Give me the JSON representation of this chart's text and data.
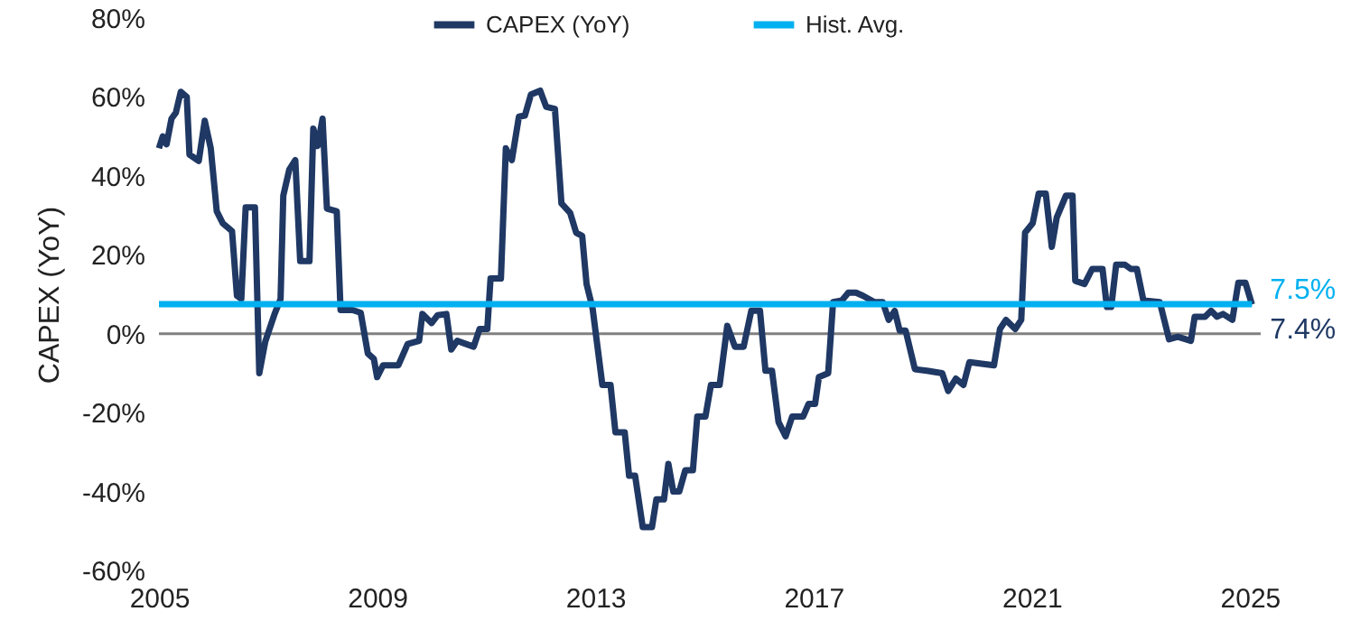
{
  "chart_data": {
    "type": "line",
    "ylabel": "CAPEX (YoY)",
    "legend": "top",
    "xlim": [
      2005,
      2025.2
    ],
    "xticks": [
      2005,
      2009,
      2013,
      2017,
      2021,
      2025
    ],
    "ylim": [
      -60,
      80
    ],
    "yticks": [
      {
        "value": -60,
        "label": "-60%"
      },
      {
        "value": -40,
        "label": "-40%"
      },
      {
        "value": -20,
        "label": "-20%"
      },
      {
        "value": 0,
        "label": "0%"
      },
      {
        "value": 20,
        "label": "20%"
      },
      {
        "value": 40,
        "label": "40%"
      },
      {
        "value": 60,
        "label": "60%"
      },
      {
        "value": 80,
        "label": "80%"
      }
    ],
    "grid": false,
    "ref_lines": [
      {
        "axis": "y",
        "value": 0,
        "color": "#808080"
      }
    ],
    "annotations": [
      {
        "text": "7.4%",
        "x": 2025.04,
        "y": 7.4
      }
    ],
    "series": [
      {
        "name": "CAPEX (YoY)",
        "color": "#1f3864",
        "x": [
          2005.0,
          2005.07,
          2005.14,
          2005.23,
          2005.31,
          2005.4,
          2005.51,
          2005.56,
          2005.73,
          2005.84,
          2005.95,
          2006.06,
          2006.17,
          2006.34,
          2006.43,
          2006.51,
          2006.59,
          2006.76,
          2006.84,
          2006.95,
          2007.12,
          2007.23,
          2007.28,
          2007.39,
          2007.5,
          2007.59,
          2007.76,
          2007.83,
          2007.91,
          2008.0,
          2008.08,
          2008.26,
          2008.33,
          2008.55,
          2008.7,
          2008.83,
          2008.94,
          2009.0,
          2009.11,
          2009.39,
          2009.56,
          2009.77,
          2009.83,
          2010.0,
          2010.11,
          2010.27,
          2010.36,
          2010.47,
          2010.77,
          2010.88,
          2011.02,
          2011.08,
          2011.27,
          2011.36,
          2011.47,
          2011.6,
          2011.71,
          2011.82,
          2011.99,
          2012.1,
          2012.26,
          2012.38,
          2012.54,
          2012.65,
          2012.76,
          2012.84,
          2012.95,
          2013.13,
          2013.28,
          2013.37,
          2013.54,
          2013.62,
          2013.73,
          2013.87,
          2014.04,
          2014.12,
          2014.26,
          2014.34,
          2014.43,
          2014.54,
          2014.65,
          2014.79,
          2014.87,
          2015.02,
          2015.12,
          2015.28,
          2015.42,
          2015.56,
          2015.72,
          2015.86,
          2016.02,
          2016.12,
          2016.24,
          2016.36,
          2016.49,
          2016.61,
          2016.81,
          2016.91,
          2017.03,
          2017.1,
          2017.27,
          2017.36,
          2017.52,
          2017.64,
          2017.78,
          2017.91,
          2018.12,
          2018.27,
          2018.38,
          2018.49,
          2018.58,
          2018.69,
          2018.86,
          2019.08,
          2019.36,
          2019.47,
          2019.61,
          2019.75,
          2019.86,
          2020.31,
          2020.42,
          2020.53,
          2020.7,
          2020.81,
          2020.88,
          2021.02,
          2021.13,
          2021.26,
          2021.37,
          2021.46,
          2021.63,
          2021.75,
          2021.8,
          2021.97,
          2022.11,
          2022.3,
          2022.38,
          2022.46,
          2022.55,
          2022.71,
          2022.82,
          2022.93,
          2023.05,
          2023.35,
          2023.52,
          2023.68,
          2023.92,
          2023.99,
          2024.18,
          2024.29,
          2024.4,
          2024.51,
          2024.68,
          2024.79,
          2024.92,
          2025.04
        ],
        "values": [
          47,
          50,
          48,
          54.5,
          56,
          61.3,
          60,
          45.4,
          43.8,
          54,
          47,
          31,
          28,
          26,
          9.6,
          8.8,
          32,
          32,
          -10,
          -2,
          5,
          8.8,
          35,
          41.6,
          44,
          18.4,
          18.4,
          52,
          47.6,
          54.5,
          31.7,
          31,
          6,
          6,
          5.3,
          -5,
          -6.4,
          -11,
          -8,
          -8,
          -2.6,
          -1.8,
          5,
          2.7,
          4.7,
          5,
          -4,
          -1.8,
          -3.3,
          1.2,
          1.2,
          14,
          14,
          47,
          44,
          55,
          55.3,
          60.6,
          61.6,
          57.5,
          57,
          33,
          30.6,
          25.6,
          24.8,
          12.6,
          6.5,
          -13,
          -13,
          -25,
          -25,
          -36,
          -36,
          -49,
          -49,
          -42,
          -42,
          -33,
          -40,
          -40,
          -34.6,
          -34.6,
          -21,
          -21,
          -13,
          -13,
          2,
          -3.3,
          -3.3,
          5.8,
          5.8,
          -9.4,
          -9.4,
          -22.4,
          -26,
          -21,
          -21,
          -17.8,
          -17.8,
          -11,
          -10,
          8,
          8.4,
          10.4,
          10.4,
          9.6,
          8,
          8,
          3.5,
          5.8,
          0.8,
          0.8,
          -9,
          -9.4,
          -10,
          -14.5,
          -11.4,
          -13,
          -7.2,
          -8,
          1.2,
          3.5,
          1.2,
          3.5,
          25.6,
          28,
          35.5,
          35.5,
          22,
          29.4,
          35,
          35,
          13.4,
          12.6,
          16.4,
          16.4,
          6.8,
          6.8,
          17.5,
          17.5,
          16.4,
          16.4,
          8.4,
          8,
          -1.4,
          -0.8,
          -1.8,
          4.3,
          4.3,
          5.8,
          4.3,
          5,
          3.5,
          12.9,
          12.9,
          7.4
        ]
      },
      {
        "name": "Hist. Avg.",
        "color": "#00b0f0",
        "x": [
          2005.0,
          2025.04
        ],
        "values": [
          7.5,
          7.5
        ],
        "value_labels": [
          null,
          "7.5%"
        ]
      }
    ]
  }
}
